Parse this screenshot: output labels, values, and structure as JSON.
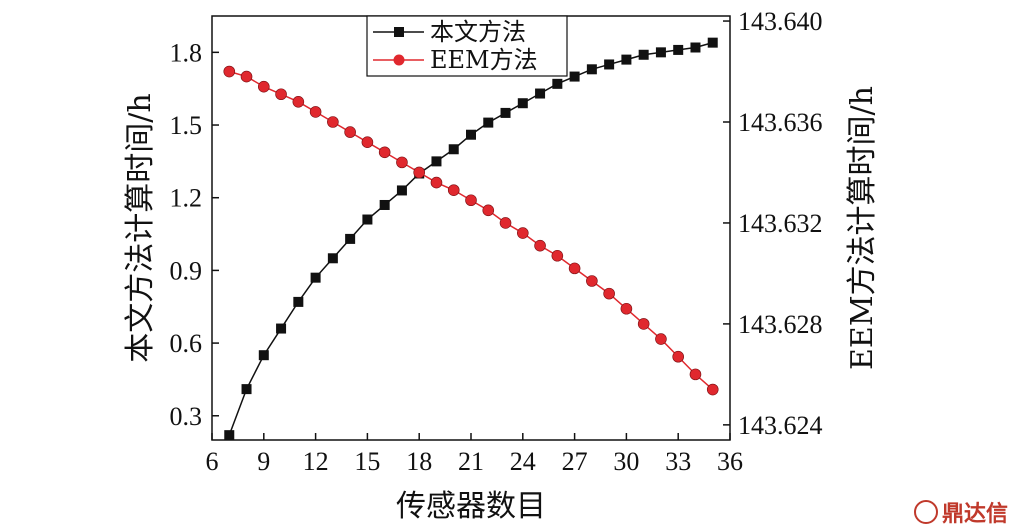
{
  "chart_data": {
    "type": "line",
    "xlabel": "传感器数目",
    "ylabel_left": "本文方法计算时间/h",
    "ylabel_right": "EEM方法计算时间/h",
    "xlim": [
      6,
      36
    ],
    "x_ticks": [
      6,
      9,
      12,
      15,
      18,
      21,
      24,
      27,
      30,
      33,
      36
    ],
    "ylim_left": [
      0.2,
      1.95
    ],
    "y_ticks_left": [
      "0.3",
      "0.6",
      "0.9",
      "1.2",
      "1.5",
      "1.8"
    ],
    "ylim_right": [
      143.6234,
      143.6402
    ],
    "y_ticks_right": [
      "143.624",
      "143.628",
      "143.632",
      "143.636",
      "143.640"
    ],
    "legend_position": "top-center",
    "x": [
      7,
      8,
      9,
      10,
      11,
      12,
      13,
      14,
      15,
      16,
      17,
      18,
      19,
      20,
      21,
      22,
      23,
      24,
      25,
      26,
      27,
      28,
      29,
      30,
      31,
      32,
      33,
      34,
      35
    ],
    "series": [
      {
        "name": "本文方法",
        "axis": "left",
        "color": "#111111",
        "marker": "square",
        "values": [
          0.22,
          0.41,
          0.55,
          0.66,
          0.77,
          0.87,
          0.95,
          1.03,
          1.11,
          1.17,
          1.23,
          1.3,
          1.35,
          1.4,
          1.46,
          1.51,
          1.55,
          1.59,
          1.63,
          1.67,
          1.7,
          1.73,
          1.75,
          1.77,
          1.79,
          1.8,
          1.81,
          1.82,
          1.84
        ]
      },
      {
        "name": "EEM方法",
        "axis": "right",
        "color": "#e0282e",
        "marker": "circle",
        "values": [
          143.638,
          143.6378,
          143.6374,
          143.6371,
          143.6368,
          143.6364,
          143.636,
          143.6356,
          143.6352,
          143.6348,
          143.6344,
          143.634,
          143.6336,
          143.6333,
          143.6329,
          143.6325,
          143.632,
          143.6316,
          143.6311,
          143.6307,
          143.6302,
          143.6297,
          143.6292,
          143.6286,
          143.628,
          143.6274,
          143.6267,
          143.626,
          143.6254
        ]
      }
    ]
  },
  "watermark": {
    "text": "鼎达信"
  }
}
